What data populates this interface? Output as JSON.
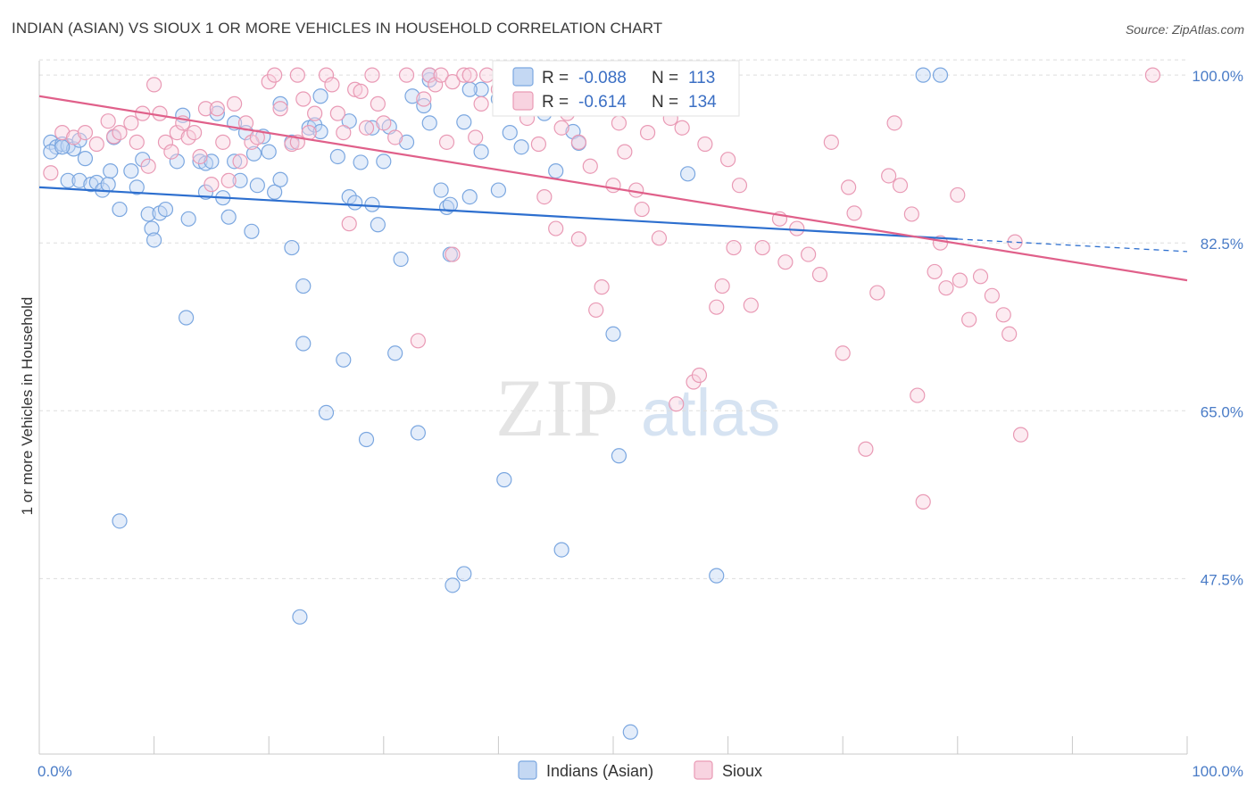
{
  "title": "INDIAN (ASIAN) VS SIOUX 1 OR MORE VEHICLES IN HOUSEHOLD CORRELATION CHART",
  "source": "Source: ZipAtlas.com",
  "watermark": {
    "zip": "ZIP",
    "atlas": "atlas"
  },
  "colors": {
    "blue": "#7ba7e0",
    "blue_fill": "#c4d8f3",
    "blue_line": "#2d6fcf",
    "pink": "#e99ab5",
    "pink_fill": "#f8d3e0",
    "pink_line": "#e0608a",
    "axis_label": "#4a7cc7",
    "grid": "#dddddd"
  },
  "legend": {
    "r_label": "R =",
    "n_label": "N =",
    "blue": {
      "r": "-0.088",
      "n": "113"
    },
    "pink": {
      "r": "-0.614",
      "n": "134"
    }
  },
  "bottom_legend": [
    "Indians (Asian)",
    "Sioux"
  ],
  "chart_data": {
    "type": "scatter",
    "xlabel": "",
    "ylabel": "1 or more Vehicles in Household",
    "xlim": [
      0,
      100
    ],
    "ylim": [
      29.2,
      101.5
    ],
    "x_tick_labels": [
      "0.0%",
      "100.0%"
    ],
    "y_ticks": [
      47.5,
      65.0,
      82.5,
      100.0
    ],
    "y_tick_labels": [
      "47.5%",
      "65.0%",
      "82.5%",
      "100.0%"
    ],
    "grid": true,
    "legend_position": "top-center",
    "series": [
      {
        "name": "Indians (Asian)",
        "color": "blue",
        "trend": {
          "x": [
            0,
            80,
            100
          ],
          "y": [
            88.3,
            82.9,
            81.6
          ],
          "solid_until": 80
        },
        "points": [
          [
            1,
            93
          ],
          [
            1.5,
            92.5
          ],
          [
            2,
            92.8
          ],
          [
            2.5,
            92.6
          ],
          [
            3,
            92.3
          ],
          [
            3.5,
            93.2
          ],
          [
            2.5,
            89
          ],
          [
            3.5,
            89
          ],
          [
            4,
            91.3
          ],
          [
            4.5,
            88.6
          ],
          [
            5,
            88.8
          ],
          [
            5.5,
            88
          ],
          [
            6,
            88.6
          ],
          [
            6.2,
            90
          ],
          [
            6.5,
            93.5
          ],
          [
            7,
            86
          ],
          [
            8,
            90
          ],
          [
            8.5,
            88.3
          ],
          [
            9,
            91.2
          ],
          [
            9.5,
            85.5
          ],
          [
            9.8,
            84
          ],
          [
            10,
            82.8
          ],
          [
            10.5,
            85.6
          ],
          [
            11,
            86
          ],
          [
            12,
            91
          ],
          [
            12.5,
            95.8
          ],
          [
            12.8,
            74.7
          ],
          [
            13,
            85
          ],
          [
            14,
            91
          ],
          [
            14.5,
            90.8
          ],
          [
            14.5,
            87.8
          ],
          [
            15,
            91
          ],
          [
            15.5,
            96
          ],
          [
            16,
            87.2
          ],
          [
            16.5,
            85.2
          ],
          [
            17,
            95
          ],
          [
            17.5,
            89
          ],
          [
            18,
            94
          ],
          [
            18.5,
            83.7
          ],
          [
            18.7,
            91.8
          ],
          [
            19,
            88.5
          ],
          [
            19.5,
            93.6
          ],
          [
            20,
            92
          ],
          [
            20.5,
            87.8
          ],
          [
            21,
            89.1
          ],
          [
            21,
            97
          ],
          [
            22,
            82
          ],
          [
            22,
            93
          ],
          [
            23,
            78
          ],
          [
            23,
            72
          ],
          [
            23.5,
            94.5
          ],
          [
            24,
            94.8
          ],
          [
            24.5,
            94.1
          ],
          [
            24.5,
            97.8
          ],
          [
            25,
            64.8
          ],
          [
            26,
            91.5
          ],
          [
            26.5,
            70.3
          ],
          [
            27,
            87.3
          ],
          [
            27,
            95.2
          ],
          [
            27.5,
            86.7
          ],
          [
            28,
            90.9
          ],
          [
            28.5,
            62
          ],
          [
            29,
            86.5
          ],
          [
            29,
            94.5
          ],
          [
            29.5,
            84.4
          ],
          [
            30,
            91
          ],
          [
            30.5,
            94.6
          ],
          [
            31,
            71
          ],
          [
            31.5,
            80.8
          ],
          [
            32,
            93
          ],
          [
            32.5,
            97.8
          ],
          [
            33,
            62.7
          ],
          [
            33.5,
            96.8
          ],
          [
            34,
            95
          ],
          [
            34,
            99.5
          ],
          [
            34,
            100
          ],
          [
            35,
            88
          ],
          [
            35.5,
            86.2
          ],
          [
            35.8,
            86.5
          ],
          [
            35.8,
            81.3
          ],
          [
            36,
            46.8
          ],
          [
            37,
            95.1
          ],
          [
            37.5,
            87.3
          ],
          [
            38.5,
            92
          ],
          [
            38.5,
            98.5
          ],
          [
            37.5,
            98.5
          ],
          [
            40,
            88
          ],
          [
            40,
            97.5
          ],
          [
            40.5,
            57.8
          ],
          [
            41,
            94
          ],
          [
            42,
            92.5
          ],
          [
            42,
            97.5
          ],
          [
            43.5,
            97
          ],
          [
            44,
            96
          ],
          [
            45,
            90
          ],
          [
            45.5,
            50.5
          ],
          [
            46.5,
            94.1
          ],
          [
            47,
            92.9
          ],
          [
            48,
            100
          ],
          [
            50,
            73
          ],
          [
            50.5,
            60.3
          ],
          [
            51.5,
            31.5
          ],
          [
            56.5,
            89.7
          ],
          [
            59,
            47.8
          ],
          [
            77,
            100
          ],
          [
            78.5,
            100
          ],
          [
            48.5,
            99.5
          ],
          [
            17,
            91
          ],
          [
            1,
            92
          ],
          [
            2,
            92.5
          ],
          [
            7,
            53.5
          ],
          [
            22.7,
            43.5
          ],
          [
            37,
            48
          ]
        ]
      },
      {
        "name": "Sioux",
        "color": "pink",
        "trend": {
          "x": [
            0,
            100
          ],
          "y": [
            97.8,
            78.6
          ]
        },
        "points": [
          [
            1,
            89.8
          ],
          [
            2,
            94
          ],
          [
            3,
            93.5
          ],
          [
            4,
            94
          ],
          [
            5,
            92.8
          ],
          [
            6,
            95.2
          ],
          [
            6.5,
            93.6
          ],
          [
            7,
            94
          ],
          [
            8,
            95
          ],
          [
            8.5,
            93
          ],
          [
            9,
            96
          ],
          [
            9.5,
            90.5
          ],
          [
            10,
            99
          ],
          [
            10.5,
            96
          ],
          [
            11,
            93
          ],
          [
            11.5,
            92
          ],
          [
            12,
            94
          ],
          [
            12.5,
            95
          ],
          [
            13,
            93.5
          ],
          [
            13.5,
            94
          ],
          [
            14,
            91.5
          ],
          [
            14.5,
            96.5
          ],
          [
            15,
            88.6
          ],
          [
            15.5,
            96.5
          ],
          [
            16,
            93
          ],
          [
            16.5,
            89
          ],
          [
            17,
            97
          ],
          [
            17.5,
            91
          ],
          [
            18,
            95
          ],
          [
            18.5,
            93
          ],
          [
            19,
            93.5
          ],
          [
            20,
            99.3
          ],
          [
            20.5,
            100
          ],
          [
            21,
            96.5
          ],
          [
            22,
            92.8
          ],
          [
            22.5,
            93
          ],
          [
            22.5,
            100
          ],
          [
            23,
            97.5
          ],
          [
            23.5,
            94
          ],
          [
            24,
            96
          ],
          [
            25,
            100
          ],
          [
            25.5,
            99
          ],
          [
            26,
            96
          ],
          [
            26.5,
            94
          ],
          [
            27,
            84.5
          ],
          [
            27.5,
            98.5
          ],
          [
            28,
            98.3
          ],
          [
            28.5,
            94.5
          ],
          [
            29,
            100
          ],
          [
            29.5,
            97
          ],
          [
            30,
            95
          ],
          [
            31,
            93.5
          ],
          [
            32,
            100
          ],
          [
            33,
            72.3
          ],
          [
            33.5,
            97.5
          ],
          [
            34,
            100
          ],
          [
            34.5,
            99
          ],
          [
            35,
            100
          ],
          [
            35.5,
            93
          ],
          [
            36,
            99.3
          ],
          [
            36,
            81.3
          ],
          [
            37,
            100
          ],
          [
            37.5,
            100
          ],
          [
            38,
            93.5
          ],
          [
            38.5,
            97
          ],
          [
            39,
            100
          ],
          [
            40,
            98.5
          ],
          [
            41,
            96.5
          ],
          [
            42,
            100
          ],
          [
            42.5,
            95.5
          ],
          [
            43,
            99
          ],
          [
            43.5,
            92.8
          ],
          [
            44,
            97
          ],
          [
            44,
            87.3
          ],
          [
            45,
            84
          ],
          [
            45.5,
            94.5
          ],
          [
            46,
            96
          ],
          [
            47,
            93
          ],
          [
            48,
            90.5
          ],
          [
            48.5,
            75.5
          ],
          [
            49,
            77.9
          ],
          [
            50,
            88.5
          ],
          [
            50.5,
            95
          ],
          [
            51,
            92
          ],
          [
            51.5,
            96.5
          ],
          [
            52,
            88
          ],
          [
            52.5,
            86
          ],
          [
            53,
            94
          ],
          [
            54,
            83
          ],
          [
            55,
            95.5
          ],
          [
            56,
            94.5
          ],
          [
            57,
            68
          ],
          [
            57.5,
            68.7
          ],
          [
            58,
            92.8
          ],
          [
            59,
            75.8
          ],
          [
            59.5,
            78
          ],
          [
            60,
            91.2
          ],
          [
            60.5,
            82
          ],
          [
            61,
            88.5
          ],
          [
            62,
            76
          ],
          [
            63,
            82
          ],
          [
            64.5,
            85
          ],
          [
            65,
            80.5
          ],
          [
            66,
            84
          ],
          [
            67,
            81.3
          ],
          [
            68,
            79.2
          ],
          [
            69,
            93
          ],
          [
            70,
            71
          ],
          [
            70.5,
            88.3
          ],
          [
            71,
            85.6
          ],
          [
            72,
            61
          ],
          [
            73,
            77.3
          ],
          [
            74,
            89.5
          ],
          [
            74.5,
            95
          ],
          [
            75,
            88.5
          ],
          [
            76,
            85.5
          ],
          [
            76.5,
            66.6
          ],
          [
            77,
            55.5
          ],
          [
            78,
            79.5
          ],
          [
            78.5,
            82.5
          ],
          [
            79,
            77.8
          ],
          [
            80,
            87.5
          ],
          [
            81,
            74.5
          ],
          [
            82,
            79
          ],
          [
            83,
            77
          ],
          [
            84,
            75
          ],
          [
            84.5,
            73
          ],
          [
            85,
            82.6
          ],
          [
            85.5,
            62.5
          ],
          [
            97,
            100
          ],
          [
            47,
            82.9
          ],
          [
            55.5,
            65.7
          ],
          [
            80.2,
            78.6
          ],
          [
            48.5,
            98
          ]
        ]
      }
    ]
  }
}
